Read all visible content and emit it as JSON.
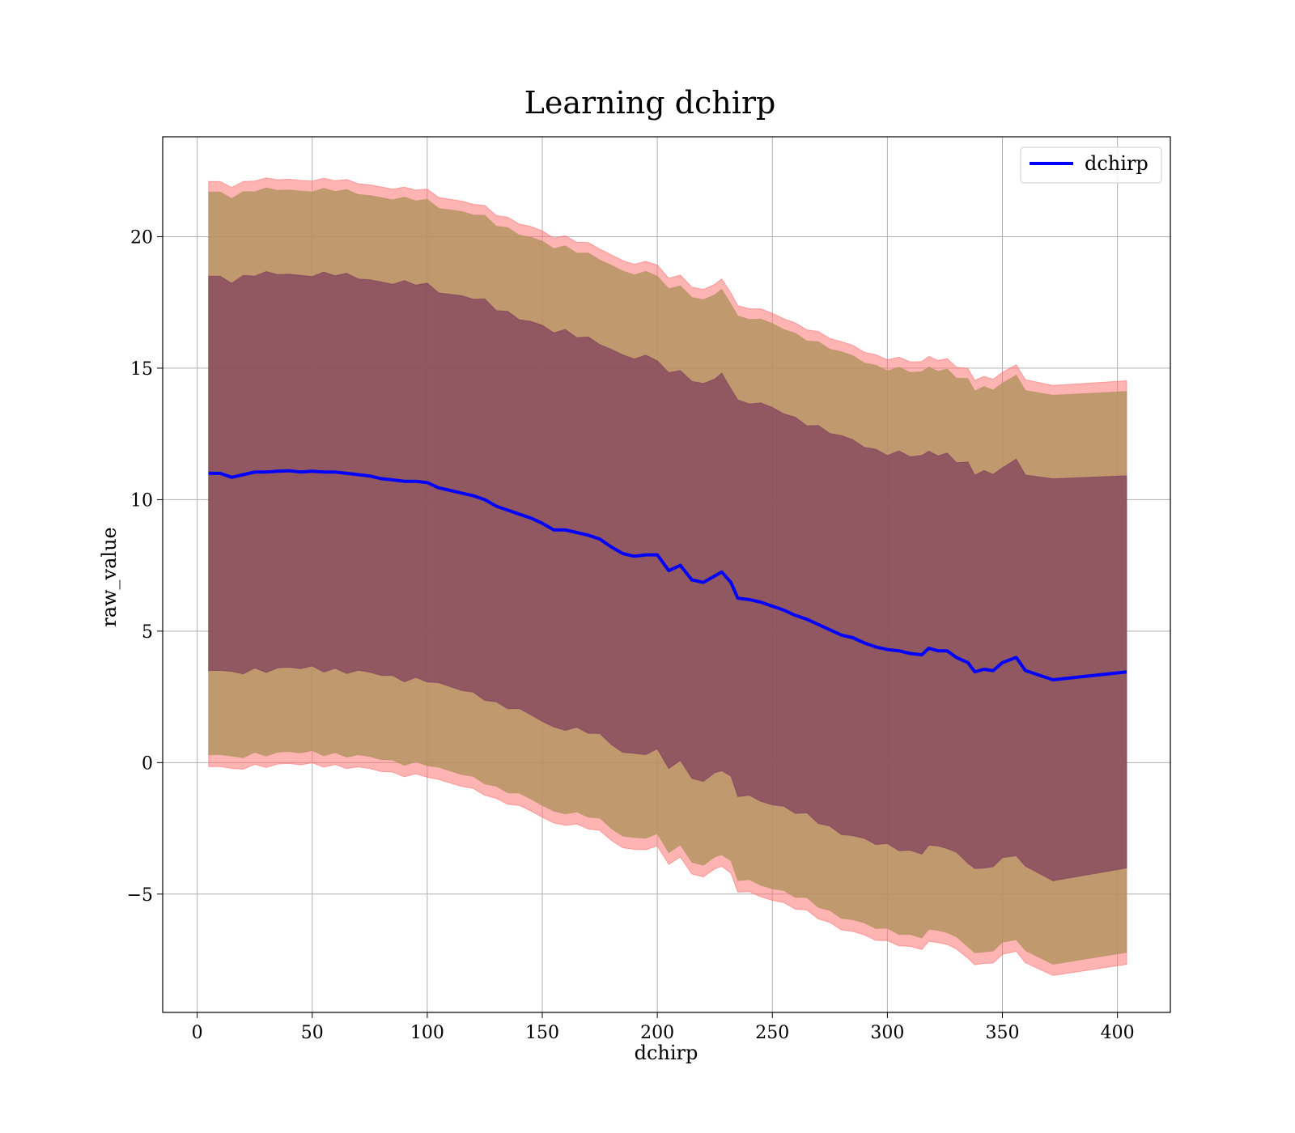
{
  "chart_data": {
    "type": "area",
    "title": "Learning dchirp",
    "xlabel": "dchirp",
    "ylabel": "raw_value",
    "xlim": [
      -15,
      423
    ],
    "ylim": [
      -9.5,
      23.8
    ],
    "x_ticks": [
      0,
      50,
      100,
      150,
      200,
      250,
      300,
      350,
      400
    ],
    "y_ticks": [
      -5,
      0,
      5,
      10,
      15,
      20
    ],
    "y_tick_labels": [
      "−5",
      "0",
      "5",
      "10",
      "15",
      "20"
    ],
    "grid": true,
    "legend": {
      "position": "top-right",
      "entries": [
        "dchirp"
      ]
    },
    "colors": {
      "mean_line": "#0000ff",
      "outer_band": "#ff6f6f",
      "middle_band": "#b0925e",
      "inner_band": "#7b3a5c"
    },
    "x": [
      5,
      10,
      15,
      20,
      25,
      30,
      35,
      40,
      45,
      50,
      55,
      60,
      65,
      70,
      75,
      80,
      85,
      90,
      95,
      100,
      105,
      110,
      115,
      120,
      125,
      130,
      135,
      140,
      145,
      150,
      155,
      160,
      165,
      170,
      175,
      180,
      185,
      190,
      195,
      200,
      205,
      210,
      215,
      220,
      225,
      228,
      232,
      235,
      240,
      245,
      250,
      255,
      260,
      265,
      270,
      275,
      280,
      285,
      290,
      295,
      300,
      305,
      310,
      315,
      318,
      322,
      326,
      330,
      335,
      338,
      342,
      346,
      350,
      356,
      360,
      372,
      404
    ],
    "series": [
      {
        "name": "dchirp",
        "kind": "line",
        "values": [
          11.0,
          11.0,
          10.85,
          10.95,
          11.05,
          11.05,
          11.08,
          11.1,
          11.05,
          11.08,
          11.05,
          11.05,
          11.0,
          10.95,
          10.9,
          10.8,
          10.75,
          10.7,
          10.7,
          10.65,
          10.45,
          10.35,
          10.25,
          10.15,
          10.0,
          9.75,
          9.6,
          9.45,
          9.3,
          9.1,
          8.85,
          8.85,
          8.75,
          8.65,
          8.5,
          8.2,
          7.95,
          7.85,
          7.9,
          7.9,
          7.3,
          7.5,
          6.95,
          6.85,
          7.1,
          7.25,
          6.85,
          6.25,
          6.2,
          6.1,
          5.95,
          5.8,
          5.6,
          5.45,
          5.25,
          5.05,
          4.85,
          4.75,
          4.55,
          4.4,
          4.3,
          4.25,
          4.15,
          4.1,
          4.35,
          4.25,
          4.25,
          4.0,
          3.8,
          3.45,
          3.55,
          3.5,
          3.8,
          4.0,
          3.5,
          3.15,
          3.45
        ]
      }
    ],
    "bands": [
      {
        "name": "outer",
        "offset_upper": 11.1,
        "offset_lower": 11.15
      },
      {
        "name": "middle",
        "offset_upper": 10.7,
        "offset_lower": 10.7
      },
      {
        "name": "inner",
        "offset_upper": 7.5,
        "offset_lower": 7.5
      }
    ]
  }
}
